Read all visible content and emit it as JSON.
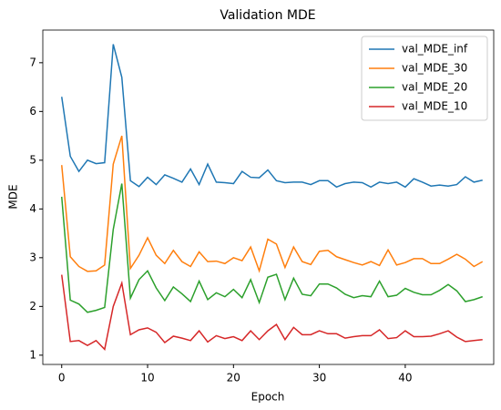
{
  "chart_data": {
    "type": "line",
    "title": "Validation MDE",
    "x_label": "Epoch",
    "y_label": "MDE",
    "x": [
      0,
      1,
      2,
      3,
      4,
      5,
      6,
      7,
      8,
      9,
      10,
      11,
      12,
      13,
      14,
      15,
      16,
      17,
      18,
      19,
      20,
      21,
      22,
      23,
      24,
      25,
      26,
      27,
      28,
      29,
      30,
      31,
      32,
      33,
      34,
      35,
      36,
      37,
      38,
      39,
      40,
      41,
      42,
      43,
      44,
      45,
      46,
      47,
      48,
      49
    ],
    "series": [
      {
        "name": "val_MDE_inf",
        "color": "#1f77b4",
        "values": [
          6.3,
          5.08,
          4.77,
          5.0,
          4.93,
          4.95,
          7.38,
          6.7,
          4.58,
          4.46,
          4.65,
          4.5,
          4.7,
          4.63,
          4.55,
          4.82,
          4.5,
          4.92,
          4.55,
          4.54,
          4.52,
          4.77,
          4.65,
          4.64,
          4.8,
          4.58,
          4.54,
          4.55,
          4.55,
          4.5,
          4.58,
          4.58,
          4.45,
          4.52,
          4.55,
          4.54,
          4.45,
          4.55,
          4.52,
          4.55,
          4.45,
          4.62,
          4.55,
          4.47,
          4.49,
          4.47,
          4.5,
          4.66,
          4.55,
          4.59
        ]
      },
      {
        "name": "val_MDE_30",
        "color": "#ff7f0e",
        "values": [
          4.9,
          3.02,
          2.82,
          2.72,
          2.73,
          2.85,
          4.92,
          5.5,
          2.78,
          3.05,
          3.41,
          3.05,
          2.88,
          3.15,
          2.92,
          2.82,
          3.12,
          2.92,
          2.93,
          2.88,
          3.0,
          2.94,
          3.22,
          2.73,
          3.38,
          3.28,
          2.8,
          3.22,
          2.92,
          2.86,
          3.13,
          3.15,
          3.02,
          2.96,
          2.9,
          2.85,
          2.92,
          2.84,
          3.16,
          2.85,
          2.9,
          2.98,
          2.98,
          2.88,
          2.88,
          2.97,
          3.07,
          2.97,
          2.82,
          2.92
        ]
      },
      {
        "name": "val_MDE_20",
        "color": "#2ca02c",
        "values": [
          4.25,
          2.13,
          2.05,
          1.88,
          1.92,
          1.98,
          3.58,
          4.52,
          2.17,
          2.55,
          2.73,
          2.38,
          2.12,
          2.4,
          2.26,
          2.1,
          2.52,
          2.14,
          2.28,
          2.2,
          2.35,
          2.18,
          2.55,
          2.08,
          2.6,
          2.66,
          2.14,
          2.58,
          2.25,
          2.22,
          2.46,
          2.46,
          2.38,
          2.25,
          2.18,
          2.22,
          2.2,
          2.52,
          2.2,
          2.23,
          2.37,
          2.29,
          2.24,
          2.24,
          2.33,
          2.45,
          2.32,
          2.1,
          2.14,
          2.2
        ]
      },
      {
        "name": "val_MDE_10",
        "color": "#d62728",
        "values": [
          2.65,
          1.28,
          1.3,
          1.2,
          1.3,
          1.12,
          2.0,
          2.48,
          1.42,
          1.52,
          1.56,
          1.47,
          1.26,
          1.39,
          1.35,
          1.3,
          1.5,
          1.27,
          1.4,
          1.34,
          1.38,
          1.3,
          1.5,
          1.32,
          1.5,
          1.63,
          1.32,
          1.57,
          1.42,
          1.42,
          1.5,
          1.44,
          1.44,
          1.35,
          1.38,
          1.4,
          1.4,
          1.52,
          1.34,
          1.36,
          1.5,
          1.38,
          1.38,
          1.39,
          1.44,
          1.5,
          1.37,
          1.28,
          1.3,
          1.32
        ]
      }
    ],
    "xlim": [
      -2.2,
      50.3
    ],
    "ylim": [
      0.81,
      7.67
    ],
    "xticks": [
      0,
      10,
      20,
      30,
      40
    ],
    "yticks": [
      1,
      2,
      3,
      4,
      5,
      6,
      7
    ],
    "grid": false,
    "legend": "upper right"
  }
}
